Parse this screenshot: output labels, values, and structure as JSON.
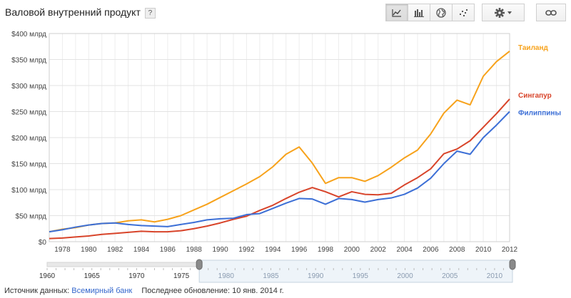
{
  "header": {
    "title": "Валовой внутренний продукт",
    "help": "?"
  },
  "toolbar": {
    "icons": [
      "line-chart-icon",
      "bar-chart-icon",
      "map-icon",
      "scatter-chart-icon",
      "gear-icon",
      "link-icon"
    ]
  },
  "colors": {
    "thailand": "#f7a21b",
    "singapore": "#d8442a",
    "philippines": "#3c6fd6",
    "grid": "#e3e3e3"
  },
  "chart_data": {
    "type": "line",
    "title": "Валовой внутренний продукт",
    "ylim": [
      0,
      400
    ],
    "xlim": [
      1977,
      2012
    ],
    "yticks": [
      {
        "v": 0,
        "label": "$0"
      },
      {
        "v": 50,
        "label": "$50 млрд"
      },
      {
        "v": 100,
        "label": "$100 млрд"
      },
      {
        "v": 150,
        "label": "$150 млрд"
      },
      {
        "v": 200,
        "label": "$200 млрд"
      },
      {
        "v": 250,
        "label": "$250 млрд"
      },
      {
        "v": 300,
        "label": "$300 млрд"
      },
      {
        "v": 350,
        "label": "$350 млрд"
      },
      {
        "v": 400,
        "label": "$400 млрд"
      }
    ],
    "xticks": [
      "1978",
      "1980",
      "1982",
      "1984",
      "1986",
      "1988",
      "1990",
      "1992",
      "1994",
      "1996",
      "1998",
      "2000",
      "2002",
      "2004",
      "2006",
      "2008",
      "2010",
      "2012"
    ],
    "x": [
      1977,
      1978,
      1979,
      1980,
      1981,
      1982,
      1983,
      1984,
      1985,
      1986,
      1987,
      1988,
      1989,
      1990,
      1991,
      1992,
      1993,
      1994,
      1995,
      1996,
      1997,
      1998,
      1999,
      2000,
      2001,
      2002,
      2003,
      2004,
      2005,
      2006,
      2007,
      2008,
      2009,
      2010,
      2011,
      2012
    ],
    "series": [
      {
        "name": "Таиланд",
        "key": "thailand",
        "values": [
          19,
          24,
          27,
          32,
          35,
          36,
          40,
          42,
          38,
          43,
          50,
          61,
          72,
          85,
          98,
          111,
          125,
          144,
          168,
          182,
          151,
          112,
          123,
          123,
          116,
          127,
          143,
          161,
          176,
          207,
          247,
          272,
          263,
          318,
          346,
          366
        ]
      },
      {
        "name": "Сингапур",
        "key": "singapore",
        "values": [
          6,
          7,
          9,
          11,
          14,
          16,
          18,
          20,
          19,
          19,
          21,
          25,
          30,
          36,
          43,
          49,
          60,
          70,
          83,
          95,
          104,
          96,
          86,
          96,
          91,
          90,
          93,
          109,
          123,
          140,
          169,
          178,
          194,
          220,
          246,
          274
        ]
      },
      {
        "name": "Филиппины",
        "key": "philippines",
        "values": [
          19,
          23,
          28,
          32,
          35,
          36,
          33,
          31,
          30,
          29,
          33,
          37,
          42,
          44,
          45,
          52,
          54,
          64,
          74,
          83,
          82,
          72,
          83,
          81,
          76,
          81,
          84,
          91,
          103,
          122,
          150,
          174,
          168,
          200,
          224,
          250
        ]
      }
    ],
    "timeline": {
      "labels": [
        "1960",
        "1965",
        "1970",
        "1975",
        "1980",
        "1985",
        "1990",
        "1995",
        "2000",
        "2005",
        "2010"
      ],
      "range_start": 1960,
      "range_end": 2012,
      "selected_start": 1977,
      "selected_end": 2012
    }
  },
  "footer": {
    "source_label": "Источник данных:",
    "source_link": "Всемирный банк",
    "updated": "Последнее обновление: 10 янв. 2014 г."
  }
}
